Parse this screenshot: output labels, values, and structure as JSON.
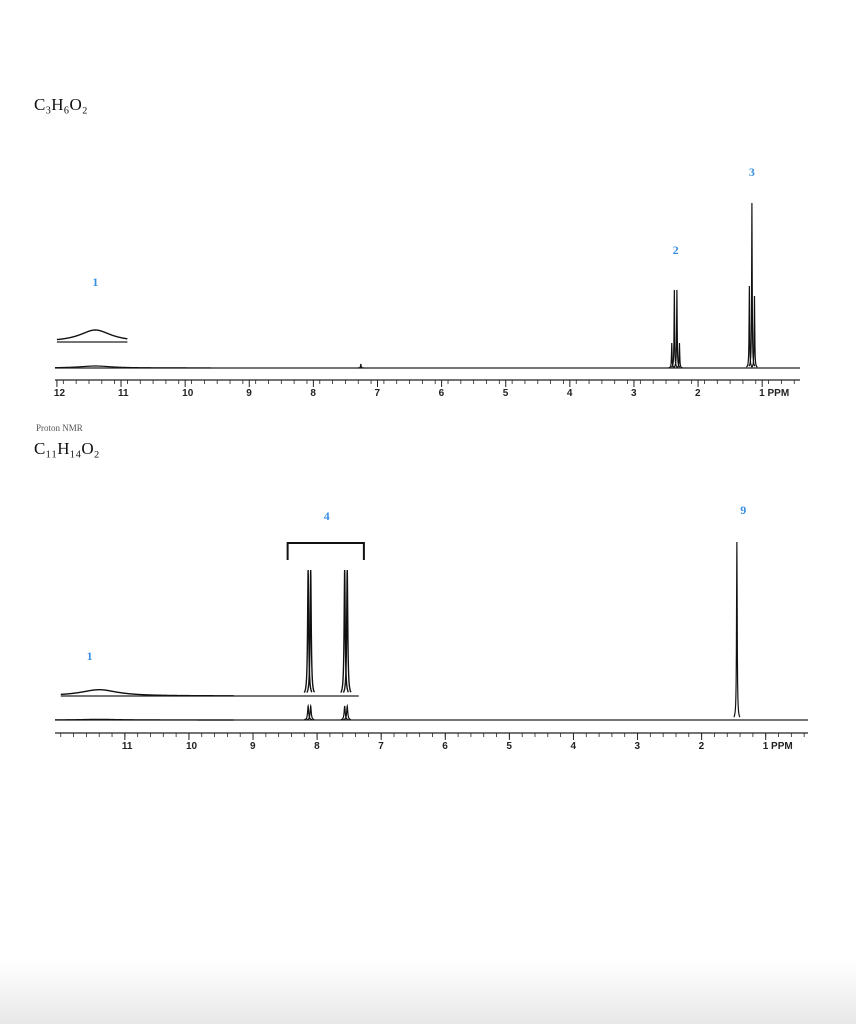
{
  "chart_data": [
    {
      "type": "nmr",
      "formula": "C₃H₆O₂",
      "xlim": [
        12.03,
        0.41
      ],
      "ylim": [
        0,
        180
      ],
      "xticks": [
        12,
        11,
        10,
        9,
        8,
        7,
        6,
        5,
        4,
        3,
        2,
        {
          "value": 1,
          "label": "1 PPM"
        }
      ],
      "peaks": [
        {
          "x": 11.4,
          "height": 2,
          "width": 0.3
        },
        {
          "x": 7.26,
          "height": 4,
          "width": 0.005
        },
        {
          "x": 2.41,
          "height": 25,
          "width": 0.005
        },
        {
          "x": 2.37,
          "height": 78,
          "width": 0.005
        },
        {
          "x": 2.33,
          "height": 78,
          "width": 0.005
        },
        {
          "x": 2.29,
          "height": 25,
          "width": 0.005
        },
        {
          "x": 1.2,
          "height": 82,
          "width": 0.005
        },
        {
          "x": 1.16,
          "height": 165,
          "width": 0.005
        },
        {
          "x": 1.12,
          "height": 72,
          "width": 0.005
        }
      ],
      "labels": [
        {
          "text": "1",
          "x": 11.4
        },
        {
          "text": "2",
          "x": 2.35
        },
        {
          "text": "3",
          "x": 1.16
        }
      ]
    },
    {
      "type": "nmr",
      "formula": "C₁₁H₁₄O₂",
      "xlim": [
        12.09,
        0.34
      ],
      "ylim": [
        0,
        180
      ],
      "xticks": [
        11,
        10,
        9,
        8,
        7,
        6,
        5,
        4,
        3,
        2,
        {
          "value": 1,
          "label": "1 PPM"
        }
      ],
      "peaks": [
        {
          "x": 11.4,
          "height": 0.7,
          "width": 0.35
        },
        {
          "x": 8.14,
          "height": 14,
          "width": 0.01
        },
        {
          "x": 8.1,
          "height": 14,
          "width": 0.01
        },
        {
          "x": 7.57,
          "height": 14,
          "width": 0.01
        },
        {
          "x": 7.53,
          "height": 14,
          "width": 0.01
        },
        {
          "x": 1.45,
          "height": 178,
          "width": 0.006
        }
      ],
      "labels": [
        {
          "text": "1",
          "x": 11.55
        },
        {
          "text": "4",
          "x": 7.85
        },
        {
          "text": "9",
          "x": 1.35
        }
      ]
    }
  ],
  "caption": "Proton NMR"
}
